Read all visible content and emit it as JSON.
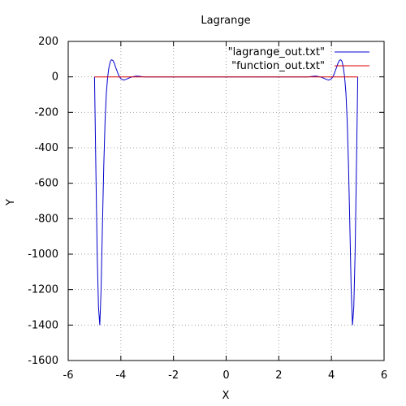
{
  "chart_data": {
    "type": "line",
    "title": "Lagrange",
    "xlabel": "X",
    "ylabel": "Y",
    "xlim": [
      -6,
      6
    ],
    "ylim": [
      -1600,
      200
    ],
    "xticks": [
      -6,
      -4,
      -2,
      0,
      2,
      4,
      6
    ],
    "yticks": [
      200,
      0,
      -200,
      -400,
      -600,
      -800,
      -1000,
      -1200,
      -1400,
      -1600
    ],
    "grid": true,
    "legend": "top-right",
    "series": [
      {
        "name": "\"lagrange_out.txt\"",
        "color": "#0000cc",
        "x": [
          -5,
          -4.95,
          -4.9,
          -4.85,
          -4.8,
          -4.75,
          -4.7,
          -4.65,
          -4.6,
          -4.55,
          -4.5,
          -4.45,
          -4.4,
          -4.35,
          -4.3,
          -4.25,
          -4.2,
          -4.15,
          -4.1,
          -4.05,
          -4.0,
          -3.9,
          -3.8,
          -3.7,
          -3.6,
          -3.5,
          -3.4,
          -3.3,
          -3.2,
          -3.1,
          -3.0,
          -2.5,
          -2.0,
          -1.5,
          -1.0,
          0,
          1.0,
          1.5,
          2.0,
          2.5,
          3.0,
          3.1,
          3.2,
          3.3,
          3.4,
          3.5,
          3.6,
          3.7,
          3.8,
          3.9,
          4.0,
          4.05,
          4.1,
          4.15,
          4.2,
          4.25,
          4.3,
          4.35,
          4.4,
          4.45,
          4.5,
          4.55,
          4.6,
          4.65,
          4.7,
          4.75,
          4.8,
          4.85,
          4.9,
          4.95,
          5
        ],
        "y": [
          0,
          -500,
          -1000,
          -1300,
          -1400,
          -1200,
          -850,
          -500,
          -250,
          -90,
          0,
          55,
          88,
          97,
          92,
          78,
          55,
          35,
          15,
          0,
          -10,
          -18,
          -14,
          -7,
          -1,
          2,
          4,
          3,
          1,
          0,
          0,
          0,
          0,
          0,
          0,
          0,
          0,
          0,
          0,
          0,
          0,
          0,
          1,
          3,
          4,
          2,
          -1,
          -7,
          -14,
          -18,
          -10,
          0,
          15,
          35,
          55,
          78,
          92,
          97,
          88,
          55,
          0,
          -90,
          -250,
          -500,
          -850,
          -1200,
          -1400,
          -1300,
          -1000,
          -500,
          0
        ]
      },
      {
        "name": "\"function_out.txt\"",
        "color": "#dd0000",
        "x": [
          -5,
          5
        ],
        "y": [
          0,
          0
        ]
      }
    ]
  }
}
